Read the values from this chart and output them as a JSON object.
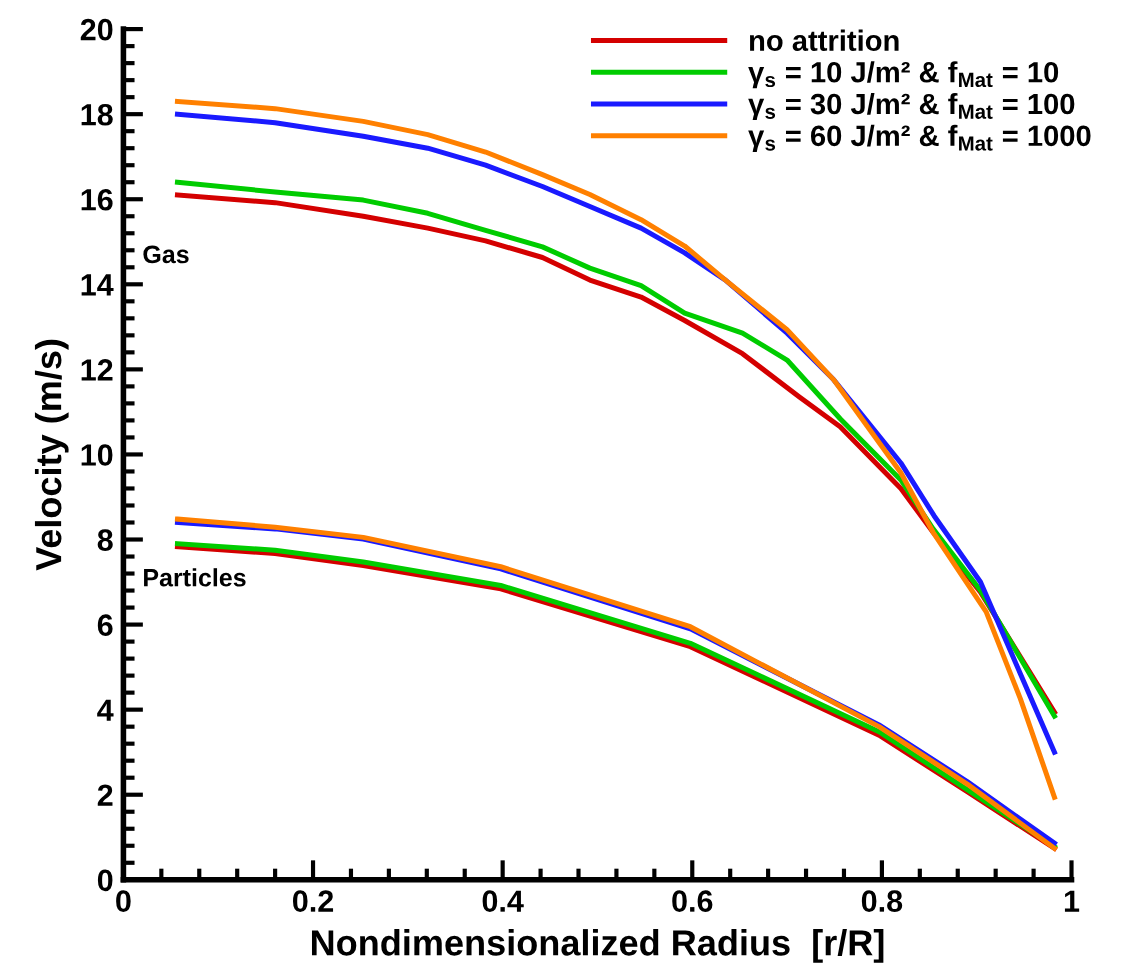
{
  "chart_data": {
    "type": "line",
    "xlabel": "Nondimensionalized Radius  [r/R]",
    "ylabel": "Velocity (m/s)",
    "xlim": [
      0,
      1
    ],
    "xticks": [
      0,
      0.2,
      0.4,
      0.6,
      0.8,
      1
    ],
    "ylim": [
      0,
      20
    ],
    "yticks": [
      0,
      2,
      4,
      6,
      8,
      10,
      12,
      14,
      16,
      18,
      20
    ],
    "legend": "top right",
    "grid": false,
    "marker": "none",
    "line_style": "solid",
    "annotations": [
      "Gas",
      "Particles"
    ],
    "series": [
      {
        "name": "no attrition",
        "color": "#d40000",
        "x": [
          0.057,
          0.16,
          0.253,
          0.321,
          0.382,
          0.442,
          0.492,
          0.546,
          0.592,
          0.653,
          0.713,
          0.756,
          0.82,
          0.854,
          0.904,
          0.982
        ],
        "values": [
          16.1,
          15.92,
          15.6,
          15.32,
          15.02,
          14.63,
          14.1,
          13.7,
          13.15,
          12.37,
          11.35,
          10.65,
          9.2,
          8.17,
          6.76,
          3.94
        ]
      },
      {
        "name": "γ$_{s}$ = 10 J/m² & f$_{Mat}$ = 10",
        "color": "#00cc00",
        "x": [
          0.057,
          0.16,
          0.253,
          0.321,
          0.382,
          0.442,
          0.492,
          0.546,
          0.592,
          0.653,
          0.7,
          0.756,
          0.82,
          0.854,
          0.904,
          0.982
        ],
        "values": [
          16.4,
          16.17,
          15.98,
          15.67,
          15.27,
          14.88,
          14.38,
          13.97,
          13.32,
          12.85,
          12.22,
          10.84,
          9.4,
          8.25,
          6.8,
          3.85
        ]
      },
      {
        "name": "γ$_{s}$ = 30 J/m² & f$_{Mat}$ = 100",
        "color": "#1a1aff",
        "x": [
          0.057,
          0.16,
          0.253,
          0.321,
          0.382,
          0.442,
          0.492,
          0.546,
          0.592,
          0.635,
          0.7,
          0.749,
          0.82,
          0.855,
          0.904,
          0.982
        ],
        "values": [
          18.0,
          17.8,
          17.48,
          17.2,
          16.8,
          16.3,
          15.83,
          15.32,
          14.74,
          14.1,
          12.85,
          11.76,
          9.8,
          8.56,
          7.0,
          3.0
        ]
      },
      {
        "name": "γ$_{s}$ = 60 J/m² & f$_{Mat}$ = 1000",
        "color": "#ff8000",
        "x": [
          0.057,
          0.16,
          0.253,
          0.321,
          0.382,
          0.442,
          0.492,
          0.546,
          0.592,
          0.635,
          0.7,
          0.749,
          0.82,
          0.854,
          0.91,
          0.946,
          0.982
        ],
        "values": [
          18.3,
          18.13,
          17.83,
          17.52,
          17.11,
          16.58,
          16.11,
          15.52,
          14.9,
          14.1,
          12.93,
          11.76,
          9.57,
          8.17,
          6.3,
          4.26,
          1.94
        ]
      },
      {
        "color": "#d40000",
        "x": [
          0.057,
          0.16,
          0.253,
          0.398,
          0.598,
          0.797,
          0.89,
          0.982
        ],
        "values": [
          7.83,
          7.67,
          7.39,
          6.84,
          5.48,
          3.4,
          2.07,
          0.74
        ]
      },
      {
        "color": "#00cc00",
        "x": [
          0.057,
          0.16,
          0.253,
          0.398,
          0.598,
          0.797,
          0.89,
          0.982
        ],
        "values": [
          7.9,
          7.75,
          7.47,
          6.92,
          5.56,
          3.48,
          2.12,
          0.78
        ]
      },
      {
        "color": "#1a1aff",
        "x": [
          0.057,
          0.16,
          0.253,
          0.398,
          0.598,
          0.797,
          0.89,
          0.982
        ],
        "values": [
          8.4,
          8.25,
          8.01,
          7.31,
          5.9,
          3.64,
          2.31,
          0.86
        ]
      },
      {
        "color": "#ff8000",
        "x": [
          0.057,
          0.16,
          0.253,
          0.398,
          0.598,
          0.797,
          0.89,
          0.982
        ],
        "values": [
          8.48,
          8.29,
          8.05,
          7.36,
          5.95,
          3.6,
          2.25,
          0.74
        ]
      }
    ]
  }
}
